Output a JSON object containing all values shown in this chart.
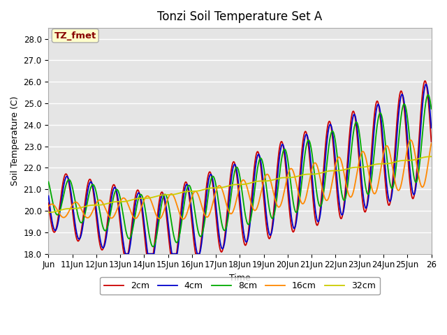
{
  "title": "Tonzi Soil Temperature Set A",
  "xlabel": "Time",
  "ylabel": "Soil Temperature (C)",
  "ylim": [
    18.0,
    28.5
  ],
  "yticks": [
    18.0,
    19.0,
    20.0,
    21.0,
    22.0,
    23.0,
    24.0,
    25.0,
    26.0,
    27.0,
    28.0
  ],
  "xlim_start": 10,
  "xlim_end": 26,
  "xtick_labels": [
    "Jun",
    "11Jun",
    "12Jun",
    "13Jun",
    "14Jun",
    "15Jun",
    "16Jun",
    "17Jun",
    "18Jun",
    "19Jun",
    "20Jun",
    "21Jun",
    "22Jun",
    "23Jun",
    "24Jun",
    "25Jun",
    "26"
  ],
  "xtick_positions": [
    10,
    11,
    12,
    13,
    14,
    15,
    16,
    17,
    18,
    19,
    20,
    21,
    22,
    23,
    24,
    25,
    26
  ],
  "colors": {
    "2cm": "#cc0000",
    "4cm": "#0000cc",
    "8cm": "#00aa00",
    "16cm": "#ff8800",
    "32cm": "#cccc00"
  },
  "legend_label": "TZ_fmet",
  "legend_box_color": "#ffffcc",
  "legend_text_color": "#880000",
  "bg_color": "#e5e5e5",
  "grid_color": "#ffffff",
  "title_fontsize": 12,
  "axis_fontsize": 9,
  "tick_fontsize": 8.5
}
